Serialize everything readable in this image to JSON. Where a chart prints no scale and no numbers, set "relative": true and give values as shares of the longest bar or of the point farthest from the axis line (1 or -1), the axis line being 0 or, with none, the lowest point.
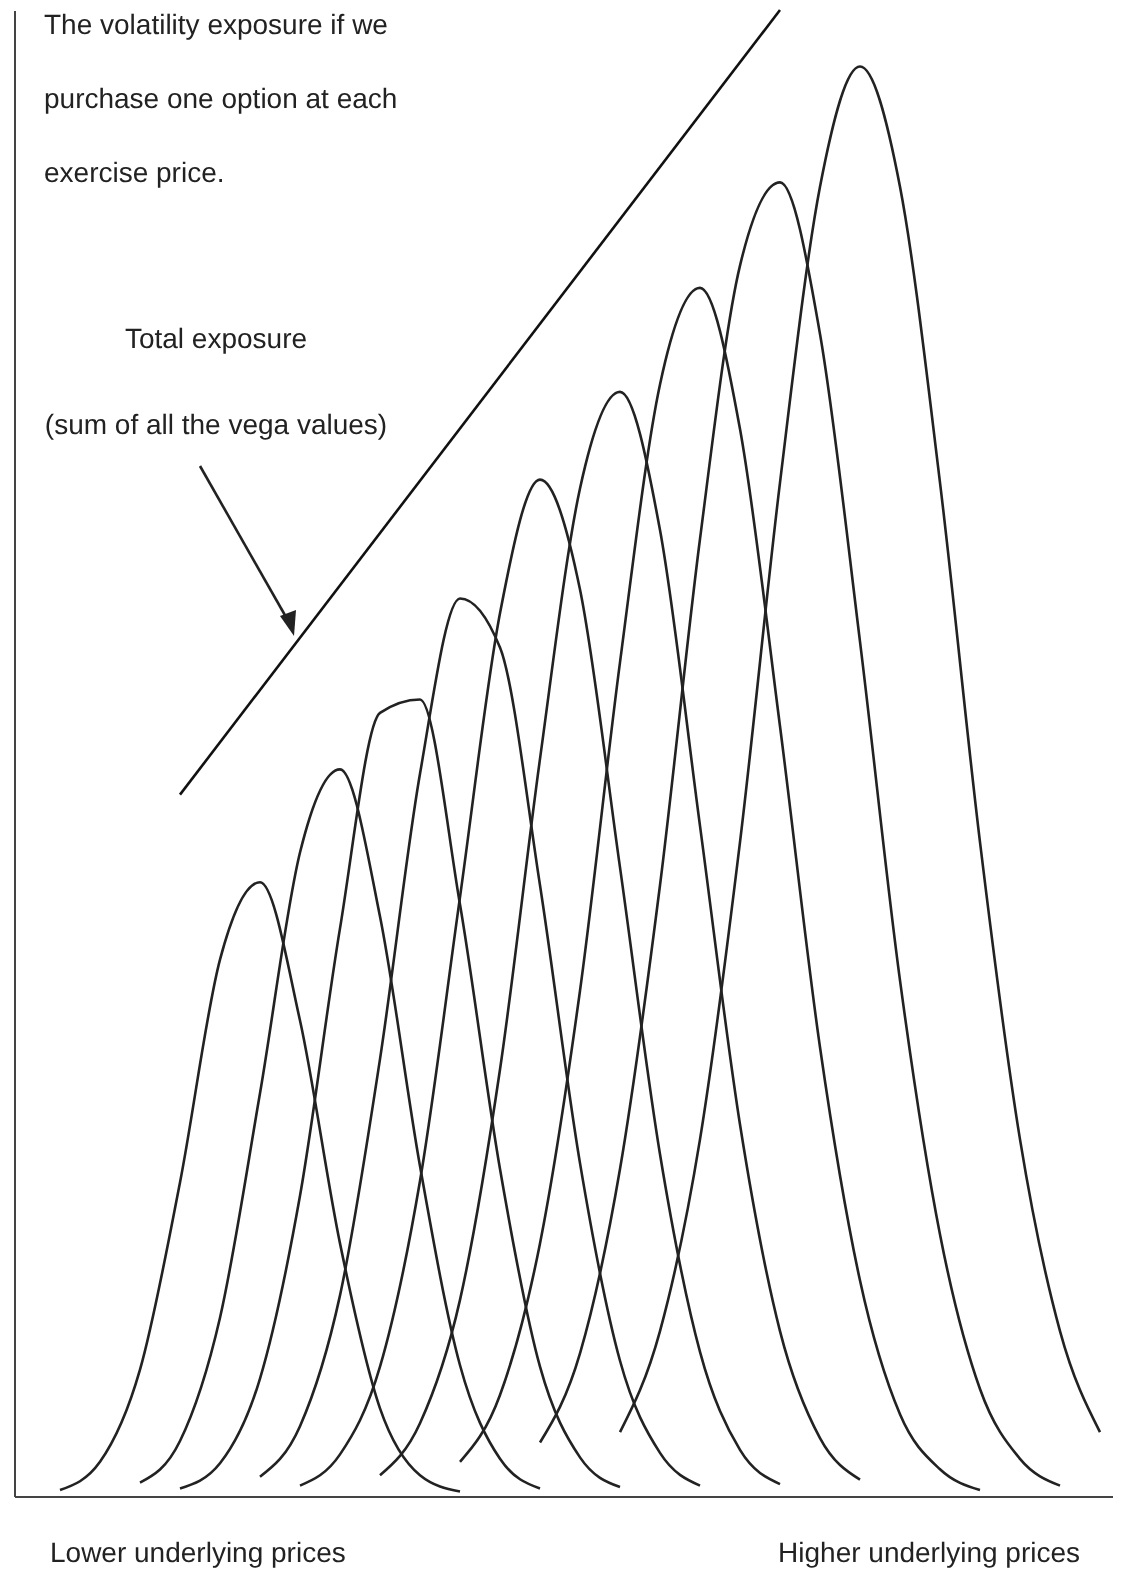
{
  "chart_data": {
    "type": "line",
    "relative": true,
    "tick_labels": false,
    "categories": [
      null,
      null,
      null,
      null,
      null,
      null,
      null,
      null,
      null,
      null,
      null,
      null,
      null,
      null,
      null,
      null,
      null,
      null,
      null,
      null,
      null,
      null,
      null,
      null,
      null,
      null,
      null,
      null
    ],
    "series": [
      {
        "color": "#222222",
        "values": [
          null,
          0.004,
          0.023,
          0.085,
          0.211,
          0.361,
          0.413,
          0.32,
          0.17,
          0.059,
          0.014,
          0.003,
          null,
          null,
          null,
          null,
          null,
          null,
          null,
          null,
          null,
          null,
          null,
          null,
          null,
          null,
          null,
          null
        ]
      },
      {
        "color": "#222222",
        "values": [
          null,
          null,
          null,
          0.009,
          0.037,
          0.12,
          0.271,
          0.433,
          0.489,
          0.39,
          0.222,
          0.088,
          0.025,
          0.005,
          null,
          null,
          null,
          null,
          null,
          null,
          null,
          null,
          null,
          null,
          null,
          null,
          null,
          null
        ]
      },
      {
        "color": "#222222",
        "values": [
          null,
          null,
          null,
          null,
          0.005,
          0.022,
          0.079,
          0.202,
          0.382,
          0.527,
          0.536,
          0.398,
          0.22,
          0.087,
          0.026,
          0.006,
          null,
          null,
          null,
          null,
          null,
          null,
          null,
          null,
          null,
          null,
          null,
          null
        ]
      },
      {
        "color": "#222222",
        "values": [
          null,
          null,
          null,
          null,
          null,
          null,
          0.013,
          0.047,
          0.135,
          0.294,
          0.486,
          0.604,
          0.571,
          0.411,
          0.224,
          0.091,
          0.029,
          0.007,
          null,
          null,
          null,
          null,
          null,
          null,
          null,
          null,
          null,
          null
        ]
      },
      {
        "color": "#222222",
        "values": [
          null,
          null,
          null,
          null,
          null,
          null,
          null,
          0.007,
          0.028,
          0.087,
          0.212,
          0.403,
          0.594,
          0.684,
          0.61,
          0.423,
          0.23,
          0.097,
          0.031,
          0.008,
          null,
          null,
          null,
          null,
          null,
          null,
          null,
          null
        ]
      },
      {
        "color": "#222222",
        "values": [
          null,
          null,
          null,
          null,
          null,
          null,
          null,
          null,
          null,
          0.014,
          0.049,
          0.132,
          0.287,
          0.496,
          0.678,
          0.743,
          0.65,
          0.451,
          0.25,
          0.111,
          0.039,
          0.011,
          null,
          null,
          null,
          null,
          null,
          null
        ]
      },
      {
        "color": "#222222",
        "values": [
          null,
          null,
          null,
          null,
          null,
          null,
          null,
          null,
          null,
          null,
          null,
          0.023,
          0.068,
          0.17,
          0.34,
          0.561,
          0.748,
          0.813,
          0.718,
          0.518,
          0.302,
          0.145,
          0.055,
          0.018,
          0.004,
          null,
          null,
          null
        ]
      },
      {
        "color": "#222222",
        "values": [
          null,
          null,
          null,
          null,
          null,
          null,
          null,
          null,
          null,
          null,
          null,
          null,
          null,
          0.036,
          0.096,
          0.22,
          0.411,
          0.644,
          0.828,
          0.884,
          0.782,
          0.575,
          0.347,
          0.176,
          0.072,
          0.025,
          0.007,
          null
        ]
      },
      {
        "color": "#222222",
        "values": [
          null,
          null,
          null,
          null,
          null,
          null,
          null,
          null,
          null,
          null,
          null,
          null,
          null,
          null,
          null,
          0.043,
          0.111,
          0.24,
          0.44,
          0.682,
          0.881,
          0.962,
          0.881,
          0.682,
          0.44,
          0.24,
          0.111,
          0.043
        ]
      },
      {
        "color": "#111111",
        "values": [
          null,
          null,
          null,
          null,
          0.472,
          null,
          null,
          null,
          null,
          null,
          null,
          null,
          null,
          null,
          null,
          null,
          null,
          null,
          null,
          1.0,
          null,
          null,
          null,
          null,
          null,
          null,
          null,
          null
        ]
      }
    ],
    "annotations": [
      "The volatility exposure if we purchase one option at each exercise price.",
      "Total exposure (sum of all the vega values)",
      "Lower underlying prices",
      "Higher underlying prices"
    ]
  }
}
